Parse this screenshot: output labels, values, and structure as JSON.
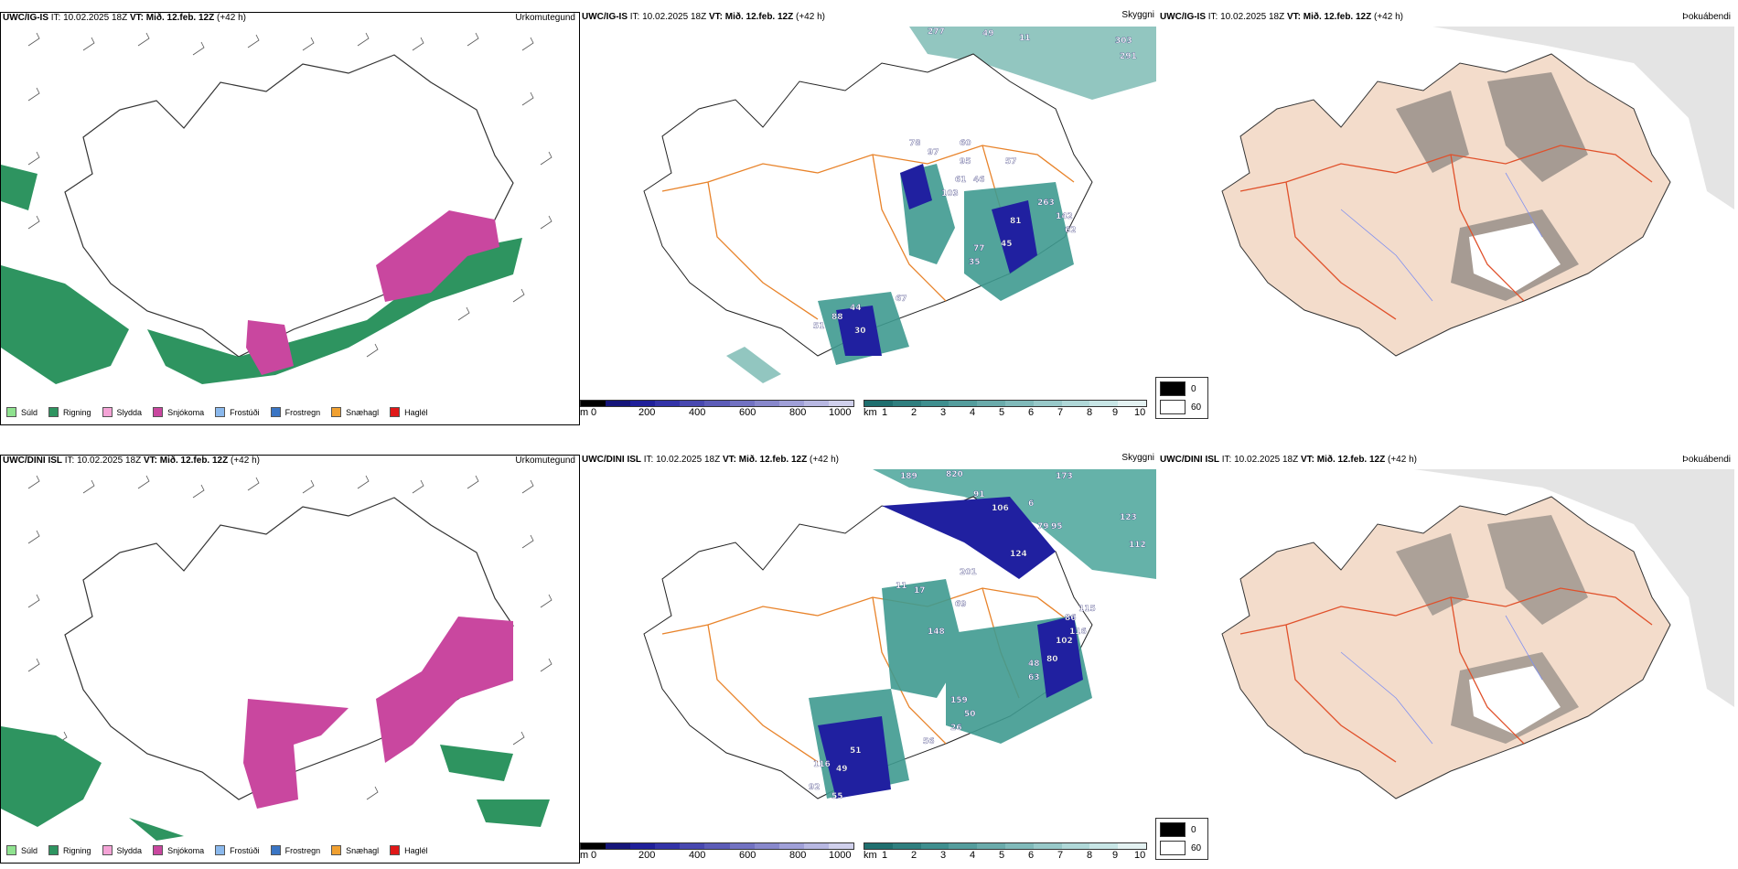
{
  "rows": [
    {
      "model": "UWC/IG-IS",
      "it_label": "IT:",
      "it_value": "10.02.2025 18Z",
      "vt_label": "VT:",
      "vt_value": "Mið. 12.feb. 12Z",
      "lead": "(+42 h)",
      "visibility_numbers": [
        "277",
        "49",
        "11",
        "303",
        "291",
        "78",
        "97",
        "60",
        "95",
        "61",
        "103",
        "57",
        "46",
        "263",
        "81",
        "142",
        "62",
        "45",
        "77",
        "35",
        "44",
        "88",
        "30",
        "51",
        "67"
      ]
    },
    {
      "model": "UWC/DINI ISL",
      "it_label": "IT:",
      "it_value": "10.02.2025 18Z",
      "vt_label": "VT:",
      "vt_value": "Mið. 12.feb. 12Z",
      "lead": "(+42 h)",
      "visibility_numbers": [
        "189",
        "820",
        "173",
        "91",
        "106",
        "6",
        "123",
        "79",
        "95",
        "112",
        "124",
        "201",
        "11",
        "17",
        "69",
        "115",
        "86",
        "116",
        "102",
        "148",
        "80",
        "48",
        "63",
        "159",
        "50",
        "26",
        "56",
        "51",
        "116",
        "49",
        "92",
        "55"
      ]
    }
  ],
  "panel_labels": {
    "precip_type": "Úrkomutegund",
    "visibility": "Skyggni",
    "fog": "Þokuábendi"
  },
  "precip_legend": [
    {
      "label": "Súld",
      "color": "#8fe28f"
    },
    {
      "label": "Rigning",
      "color": "#2e9460"
    },
    {
      "label": "Slydda",
      "color": "#f4a3d6"
    },
    {
      "label": "Snjókoma",
      "color": "#c9479f"
    },
    {
      "label": "Frostúði",
      "color": "#8ab8ec"
    },
    {
      "label": "Frostregn",
      "color": "#3a75c4"
    },
    {
      "label": "Snæhagl",
      "color": "#f0a030"
    },
    {
      "label": "Haglél",
      "color": "#e01818"
    }
  ],
  "cbar_m": {
    "unit": "m",
    "ticks": [
      "0",
      "200",
      "400",
      "600",
      "800",
      "1000"
    ],
    "colors": [
      "#000000",
      "#15157a",
      "#20209a",
      "#3333a8",
      "#4848b0",
      "#5c5cb8",
      "#7272c2",
      "#8888cc",
      "#a0a0d8",
      "#b8b8e2",
      "#d0d0ec"
    ]
  },
  "cbar_km": {
    "unit": "km",
    "ticks": [
      "1",
      "2",
      "3",
      "4",
      "5",
      "6",
      "7",
      "8",
      "9",
      "10"
    ],
    "colors": [
      "#1f6f6f",
      "#2f7f7f",
      "#3f8f8f",
      "#549d9d",
      "#6aabab",
      "#80baba",
      "#98c9c9",
      "#b0d8d8",
      "#c8e6e6",
      "#e4f2f2"
    ]
  },
  "cloud_legend": [
    {
      "label": "0",
      "color": "#000000"
    },
    {
      "label": "60",
      "color": "#ffffff"
    }
  ],
  "map_colors": {
    "rain": "#2e9460",
    "snow": "#c9479f",
    "vis_teal": "#3f9a90",
    "vis_blue": "#2020a0",
    "roads": "#e8832a",
    "land_fog": "#f3dccb",
    "fog_roads": "#e0502a"
  }
}
